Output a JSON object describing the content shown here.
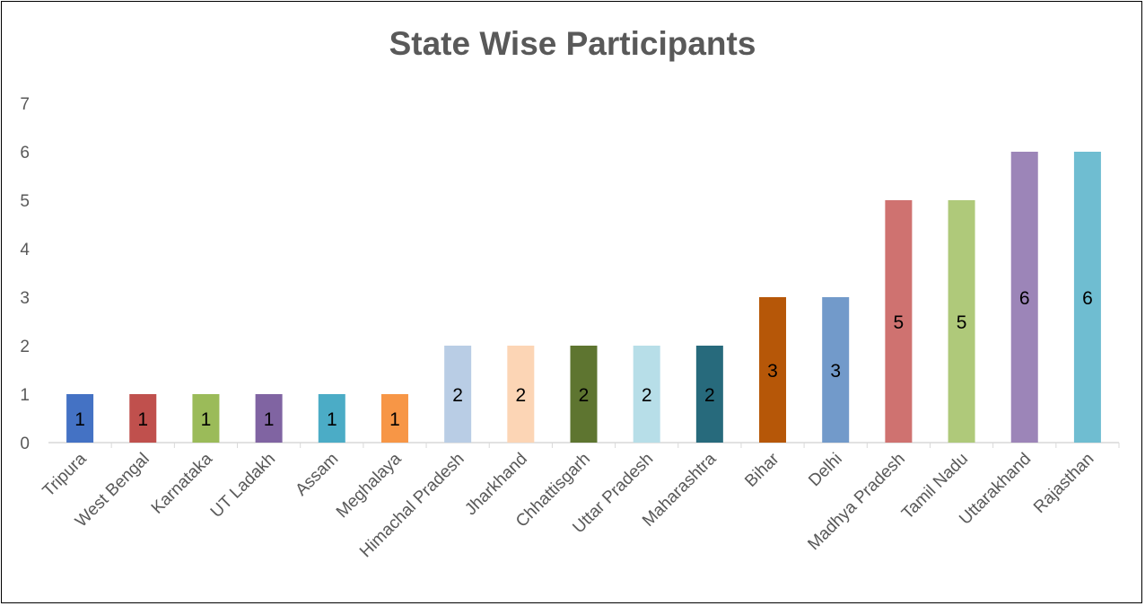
{
  "chart_data": {
    "type": "bar",
    "title": "State Wise Participants",
    "xlabel": "",
    "ylabel": "",
    "ylim": [
      0,
      7
    ],
    "yticks": [
      0,
      1,
      2,
      3,
      4,
      5,
      6,
      7
    ],
    "grid": false,
    "legend": "none",
    "categories": [
      "Tripura",
      "West Bengal",
      "Karnataka",
      "UT Ladakh",
      "Assam",
      "Meghalaya",
      "Himachal Pradesh",
      "Jharkhand",
      "Chhattisgarh",
      "Uttar Pradesh",
      "Maharashtra",
      "Bihar",
      "Delhi",
      "Madhya Pradesh",
      "Tamil Nadu",
      "Uttarakhand",
      "Rajasthan"
    ],
    "values": [
      1,
      1,
      1,
      1,
      1,
      1,
      2,
      2,
      2,
      2,
      2,
      3,
      3,
      5,
      5,
      6,
      6
    ],
    "colors": [
      "#4472C4",
      "#C0504D",
      "#9BBB59",
      "#8064A2",
      "#4BACC6",
      "#F79646",
      "#B9CDE5",
      "#FCD5B5",
      "#5E7530",
      "#B7DEE8",
      "#276A7C",
      "#B65708",
      "#729ACA",
      "#CF7270",
      "#AFC97A",
      "#9C85B8",
      "#6FBDD1"
    ]
  }
}
